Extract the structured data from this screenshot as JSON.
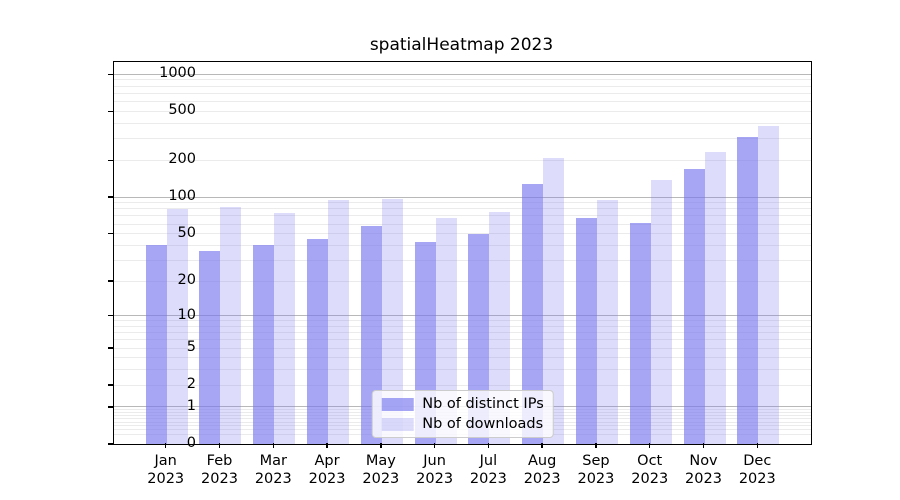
{
  "title": "spatialHeatmap 2023",
  "chart_data": {
    "type": "bar",
    "title": "spatialHeatmap 2023",
    "categories": [
      "Jan\n2023",
      "Feb\n2023",
      "Mar\n2023",
      "Apr\n2023",
      "May\n2023",
      "Jun\n2023",
      "Jul\n2023",
      "Aug\n2023",
      "Sep\n2023",
      "Oct\n2023",
      "Nov\n2023",
      "Dec\n2023"
    ],
    "months": [
      "Jan",
      "Feb",
      "Mar",
      "Apr",
      "May",
      "Jun",
      "Jul",
      "Aug",
      "Sep",
      "Oct",
      "Nov",
      "Dec"
    ],
    "year": "2023",
    "series": [
      {
        "name": "Nb of distinct IPs",
        "color": "rgba(119,119,238,0.65)",
        "values": [
          40,
          36,
          40,
          45,
          58,
          43,
          50,
          128,
          67,
          61,
          170,
          310
        ]
      },
      {
        "name": "Nb of downloads",
        "color": "rgba(119,119,238,0.25)",
        "values": [
          80,
          83,
          74,
          94,
          97,
          67,
          75,
          207,
          94,
          139,
          235,
          380
        ]
      }
    ],
    "yscale": "log1p",
    "yticks": [
      0,
      1,
      2,
      5,
      10,
      20,
      50,
      100,
      200,
      500,
      1000
    ],
    "ylim": [
      0,
      1260
    ],
    "xlabel": "",
    "ylabel": "",
    "grid": true,
    "legend_position": "lower center",
    "colors": {
      "bar_dark": "rgba(119,119,238,0.65)",
      "bar_light": "rgba(119,119,238,0.25)",
      "grid_major": "#b8b8b8",
      "grid_minor": "#ebebeb",
      "axis": "#000000",
      "legend_border": "#cccccc"
    }
  }
}
